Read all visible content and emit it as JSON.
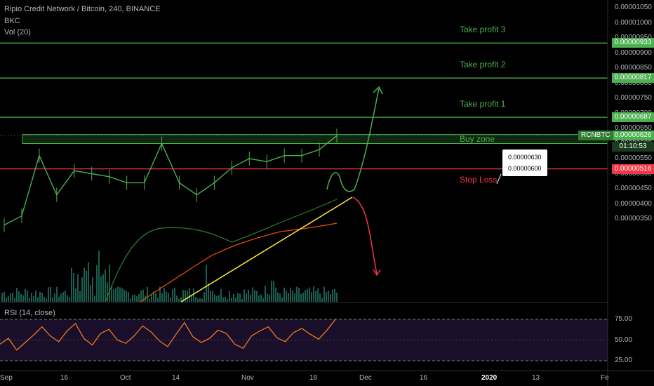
{
  "header": {
    "title": "Ripio Credit Network / Bitcoin, 240, BINANCE",
    "indicator1": "BKC",
    "indicator2": "Vol (20)"
  },
  "rsi": {
    "label": "RSI (14, close)"
  },
  "price_axis": {
    "ticks": [
      "0.00001050",
      "0.00001000",
      "0.00000950",
      "0.00000900",
      "0.00000850",
      "0.00000800",
      "0.00000750",
      "0.00000700",
      "0.00000650",
      "0.00000600",
      "0.00000550",
      "0.00000500",
      "0.00000450",
      "0.00000400",
      "0.00000350"
    ],
    "tick_values": [
      1050,
      1000,
      950,
      900,
      850,
      800,
      750,
      700,
      650,
      600,
      550,
      500,
      450,
      400,
      350
    ]
  },
  "rsi_axis": {
    "ticks": [
      "75.00",
      "50.00",
      "25.00"
    ],
    "tick_values": [
      75,
      50,
      25
    ]
  },
  "time_axis": {
    "labels": [
      "Sep",
      "16",
      "Oct",
      "14",
      "Nov",
      "18",
      "Dec",
      "16",
      "2020",
      "13",
      "Fe"
    ],
    "bold": [
      "2020"
    ]
  },
  "levels": [
    {
      "name": "Take profit 3",
      "price_label": "0.00000933",
      "value": 933,
      "color": "#4caf50"
    },
    {
      "name": "Take profit 2",
      "price_label": "0.00000817",
      "value": 817,
      "color": "#4caf50"
    },
    {
      "name": "Take profit 1",
      "price_label": "0.00000687",
      "value": 687,
      "color": "#4caf50"
    },
    {
      "name": "Stop Loss",
      "price_label": "0.00000516",
      "value": 516,
      "color": "#f23645"
    }
  ],
  "buy_zone": {
    "label": "Buy zone",
    "top_label": "0.00000630",
    "bottom_label": "0.00000600",
    "top": 630,
    "bottom": 600
  },
  "current": {
    "symbol": "RCNBTC",
    "price_label": "0.00000626",
    "value": 626,
    "countdown": "01:10:53"
  },
  "colors": {
    "level_green": "#4caf50",
    "stop_red": "#f23645",
    "trendline": "#ffeb3b",
    "candle": "#4caf50",
    "ma_green": "#2e7d32",
    "ma_orange": "#e65100",
    "rsi_line": "#ff7e1f",
    "rsi_bg": "#1a0f2a",
    "volume": "#1b5e4e",
    "axis_text": "#b2b5be"
  },
  "chart_data": {
    "type": "line",
    "title": "Ripio Credit Network / Bitcoin, 240, BINANCE",
    "ylabel": "",
    "xlabel": "",
    "ylim": [
      3.2e-06,
      1.07e-05
    ],
    "series": [
      {
        "name": "RCNBTC",
        "x": [
          "Sep 8",
          "Sep 16",
          "Sep 24",
          "Sep 28",
          "Oct 1",
          "Oct 5",
          "Oct 10",
          "Oct 14",
          "Oct 18",
          "Oct 21",
          "Oct 23",
          "Oct 27",
          "Oct 31",
          "Nov 4",
          "Nov 8",
          "Nov 12",
          "Nov 16",
          "Nov 20",
          "Nov 23",
          "Nov 25"
        ],
        "values": [
          3.3e-06,
          3.6e-06,
          5.6e-06,
          4.3e-06,
          5.1e-06,
          5e-06,
          4.9e-06,
          4.7e-06,
          4.7e-06,
          6e-06,
          4.7e-06,
          4.3e-06,
          4.7e-06,
          5.2e-06,
          5.5e-06,
          5.4e-06,
          5.6e-06,
          5.6e-06,
          5.8e-06,
          6.26e-06
        ]
      }
    ],
    "rsi": {
      "name": "RSI (14, close)",
      "ylim": [
        20,
        95
      ],
      "values": [
        45,
        52,
        38,
        47,
        56,
        66,
        55,
        48,
        61,
        70,
        52,
        44,
        58,
        63,
        50,
        46,
        55,
        67,
        60,
        49,
        42,
        57,
        71,
        54,
        47,
        52,
        62,
        58,
        45,
        40,
        55,
        61,
        66,
        53,
        48,
        59,
        64,
        57,
        51,
        62,
        75
      ]
    }
  }
}
